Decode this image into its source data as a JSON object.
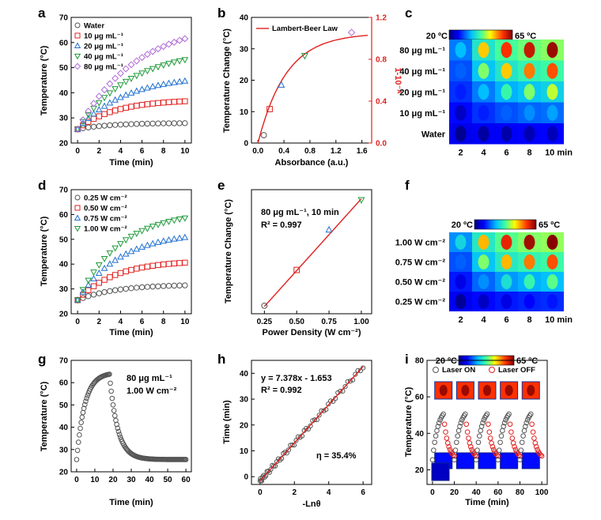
{
  "figure": {
    "panel_labels": [
      "a",
      "b",
      "c",
      "d",
      "e",
      "f",
      "g",
      "h",
      "i"
    ]
  },
  "colors": {
    "water": "#555555",
    "c10": "#e0211f",
    "c20": "#1f6fd1",
    "c40": "#1f9a3a",
    "c80": "#b06ad8",
    "p025": "#555555",
    "p050": "#e0211f",
    "p075": "#1f6fd1",
    "p100": "#1f9a3a",
    "fit": "#e0211f",
    "axis_right": "#e0211f"
  },
  "chart_data": [
    {
      "id": "a",
      "type": "scatter",
      "xlabel": "Time (min)",
      "ylabel": "Temperature (°C)",
      "xlim": [
        -0.6,
        10.6
      ],
      "ylim": [
        20,
        70
      ],
      "xticks": [
        "0",
        "2",
        "4",
        "6",
        "8",
        "10"
      ],
      "yticks": [
        "20",
        "30",
        "40",
        "50",
        "60",
        "70"
      ],
      "legend_position": "top-left",
      "x": [
        0,
        0.5,
        1,
        1.5,
        2,
        2.5,
        3,
        3.5,
        4,
        4.5,
        5,
        5.5,
        6,
        6.5,
        7,
        7.5,
        8,
        8.5,
        9,
        9.5,
        10
      ],
      "series": [
        {
          "name": "Water",
          "marker": "circle",
          "color_key": "water",
          "t0": 25.5,
          "dT": 2.5,
          "tau": 3
        },
        {
          "name": "10 μg mL⁻¹",
          "marker": "square",
          "color_key": "c10",
          "t0": 25.5,
          "dT": 11.8,
          "tau": 3.5
        },
        {
          "name": "20 μg mL⁻¹",
          "marker": "triangle-up",
          "color_key": "c20",
          "t0": 25.5,
          "dT": 21.5,
          "tau": 4.5
        },
        {
          "name": "40 μg mL⁻¹",
          "marker": "triangle-down",
          "color_key": "c40",
          "t0": 25.5,
          "dT": 32,
          "tau": 5
        },
        {
          "name": "80 μg mL⁻¹",
          "marker": "diamond",
          "color_key": "c80",
          "t0": 25.5,
          "dT": 43,
          "tau": 5.5
        }
      ]
    },
    {
      "id": "b",
      "type": "scatter",
      "legend": "Lambert-Beer Law",
      "xlabel": "Absorbance (a.u.)",
      "ylabel": "Temperature Change (°C)",
      "ylabel_right": "1-10⁻ᴬ",
      "xlim": [
        -0.1,
        1.75
      ],
      "ylim": [
        0,
        40
      ],
      "ylim_right": [
        0,
        1.2
      ],
      "xticks": [
        "0.0",
        "0.4",
        "0.8",
        "1.2",
        "1.6"
      ],
      "yticks": [
        "0",
        "10",
        "20",
        "30",
        "40"
      ],
      "yticks_right": [
        "0.0",
        "0.4",
        "0.8",
        "1.2"
      ],
      "points": [
        {
          "x": 0.09,
          "y": 2.5,
          "marker": "circle",
          "color_key": "water"
        },
        {
          "x": 0.18,
          "y": 10.8,
          "marker": "square",
          "color_key": "c10"
        },
        {
          "x": 0.36,
          "y": 18.5,
          "marker": "triangle-up",
          "color_key": "c20"
        },
        {
          "x": 0.72,
          "y": 27.8,
          "marker": "triangle-down",
          "color_key": "c40"
        },
        {
          "x": 1.44,
          "y": 35.2,
          "marker": "diamond",
          "color_key": "c80"
        }
      ],
      "fit": {
        "type": "lambert-beer",
        "amplitude": 35,
        "x_start": 0
      }
    },
    {
      "id": "c",
      "type": "heatmap",
      "colorbar": {
        "min_label": "20 ºC",
        "max_label": "65 ºC"
      },
      "row_labels": [
        "80 μg mL⁻¹",
        "40 μg mL⁻¹",
        "20 μg mL⁻¹",
        "10 μg mL⁻¹",
        "Water"
      ],
      "col_labels": [
        "2",
        "4",
        "6",
        "8",
        "10 min"
      ],
      "values": [
        [
          0.35,
          0.7,
          0.85,
          0.92,
          0.97
        ],
        [
          0.25,
          0.55,
          0.7,
          0.78,
          0.82
        ],
        [
          0.18,
          0.35,
          0.48,
          0.55,
          0.6
        ],
        [
          0.08,
          0.18,
          0.25,
          0.3,
          0.32
        ],
        [
          0.02,
          0.04,
          0.05,
          0.06,
          0.07
        ]
      ]
    },
    {
      "id": "d",
      "type": "scatter",
      "xlabel": "Time (min)",
      "ylabel": "Temperature (°C)",
      "xlim": [
        -0.6,
        10.6
      ],
      "ylim": [
        20,
        70
      ],
      "xticks": [
        "0",
        "2",
        "4",
        "6",
        "8",
        "10"
      ],
      "yticks": [
        "20",
        "30",
        "40",
        "50",
        "60",
        "70"
      ],
      "legend_position": "top-left",
      "x": [
        0,
        0.5,
        1,
        1.5,
        2,
        2.5,
        3,
        3.5,
        4,
        4.5,
        5,
        5.5,
        6,
        6.5,
        7,
        7.5,
        8,
        8.5,
        9,
        9.5,
        10
      ],
      "series": [
        {
          "name": "0.25 W cm⁻²",
          "marker": "circle",
          "color_key": "p025",
          "t0": 25.5,
          "dT": 6.3,
          "tau": 3.5
        },
        {
          "name": "0.50 W cm⁻²",
          "marker": "square",
          "color_key": "p050",
          "t0": 25.5,
          "dT": 16,
          "tau": 3.5
        },
        {
          "name": "0.75 W cm⁻²",
          "marker": "triangle-up",
          "color_key": "p075",
          "t0": 25.5,
          "dT": 27.5,
          "tau": 4
        },
        {
          "name": "1.00 W cm⁻²",
          "marker": "triangle-down",
          "color_key": "p100",
          "t0": 25.5,
          "dT": 36,
          "tau": 4
        }
      ]
    },
    {
      "id": "e",
      "type": "scatter",
      "annotation_line1": "80 μg mL⁻¹, 10 min",
      "annotation_line2": "R² = 0.997",
      "xlabel": "Power Density (W cm⁻²)",
      "ylabel": "Temperature Change (°C)",
      "xlim": [
        0.15,
        1.08
      ],
      "ylim": [
        4,
        38
      ],
      "xticks": [
        "0.25",
        "0.50",
        "0.75",
        "1.00"
      ],
      "points": [
        {
          "x": 0.25,
          "y": 6.2,
          "marker": "circle",
          "color_key": "p025"
        },
        {
          "x": 0.5,
          "y": 16,
          "marker": "square",
          "color_key": "p050"
        },
        {
          "x": 0.75,
          "y": 27,
          "marker": "triangle-up",
          "color_key": "p075"
        },
        {
          "x": 1.0,
          "y": 35.2,
          "marker": "triangle-down",
          "color_key": "p100"
        }
      ],
      "fit": {
        "x": [
          0.25,
          1.0
        ],
        "y": [
          6.0,
          35.5
        ]
      }
    },
    {
      "id": "f",
      "type": "heatmap",
      "colorbar": {
        "min_label": "20 ºC",
        "max_label": "65 ºC"
      },
      "row_labels": [
        "1.00 W cm⁻²",
        "0.75 W cm⁻²",
        "0.50 W cm⁻²",
        "0.25 W cm⁻²"
      ],
      "col_labels": [
        "2",
        "4",
        "6",
        "8",
        "10 min"
      ],
      "values": [
        [
          0.4,
          0.72,
          0.88,
          0.96,
          0.99
        ],
        [
          0.25,
          0.55,
          0.72,
          0.78,
          0.82
        ],
        [
          0.12,
          0.3,
          0.42,
          0.48,
          0.52
        ],
        [
          0.03,
          0.08,
          0.12,
          0.15,
          0.17
        ]
      ]
    },
    {
      "id": "g",
      "type": "scatter",
      "annotation_line1": "80 μg mL⁻¹",
      "annotation_line2": "1.00 W cm⁻²",
      "xlabel": "Time (min)",
      "ylabel": "Temperature (°C)",
      "xlim": [
        -3,
        63
      ],
      "ylim": [
        20,
        70
      ],
      "xticks": [
        "0",
        "10",
        "20",
        "30",
        "40",
        "50",
        "60"
      ],
      "yticks": [
        "20",
        "30",
        "40",
        "50",
        "60",
        "70"
      ],
      "heating": {
        "t_end": 18,
        "t0": 25.5,
        "dT": 39,
        "tau": 4.5
      },
      "cooling": {
        "t_end": 60,
        "t_inf": 25.5,
        "tau": 4.5
      },
      "sample_interval": 0.5
    },
    {
      "id": "h",
      "type": "scatter",
      "annotation_line1": "y = 7.378x - 1.653",
      "annotation_line2": "R² = 0.992",
      "annotation_eta": "η = 35.4%",
      "xlabel": "-Lnθ",
      "ylabel": "Time (min)",
      "xlim": [
        -0.5,
        6.5
      ],
      "ylim": [
        -3,
        45
      ],
      "xticks": [
        "0",
        "2",
        "4",
        "6"
      ],
      "yticks": [
        "0",
        "10",
        "20",
        "30",
        "40"
      ],
      "fit": {
        "slope": 7.378,
        "intercept": -1.653,
        "x": [
          0,
          6
        ]
      }
    },
    {
      "id": "i",
      "type": "scatter",
      "colorbar": {
        "min_label": "20 ºC",
        "max_label": "65 ºC"
      },
      "legend": [
        "Laser ON",
        "Laser OFF"
      ],
      "xlabel": "Time (min)",
      "ylabel": "Temperature (°C)",
      "xlim": [
        -5,
        105
      ],
      "ylim": [
        12,
        80
      ],
      "xticks": [
        "0",
        "20",
        "40",
        "60",
        "80",
        "100"
      ],
      "yticks": [
        "20",
        "40",
        "60",
        "80"
      ],
      "cycles": 5,
      "cycle_length": 20,
      "on_duration": 10,
      "t0": 25.5,
      "dT": 29,
      "tau_on": 5,
      "tau_off": 4,
      "sample_interval": 1
    }
  ]
}
